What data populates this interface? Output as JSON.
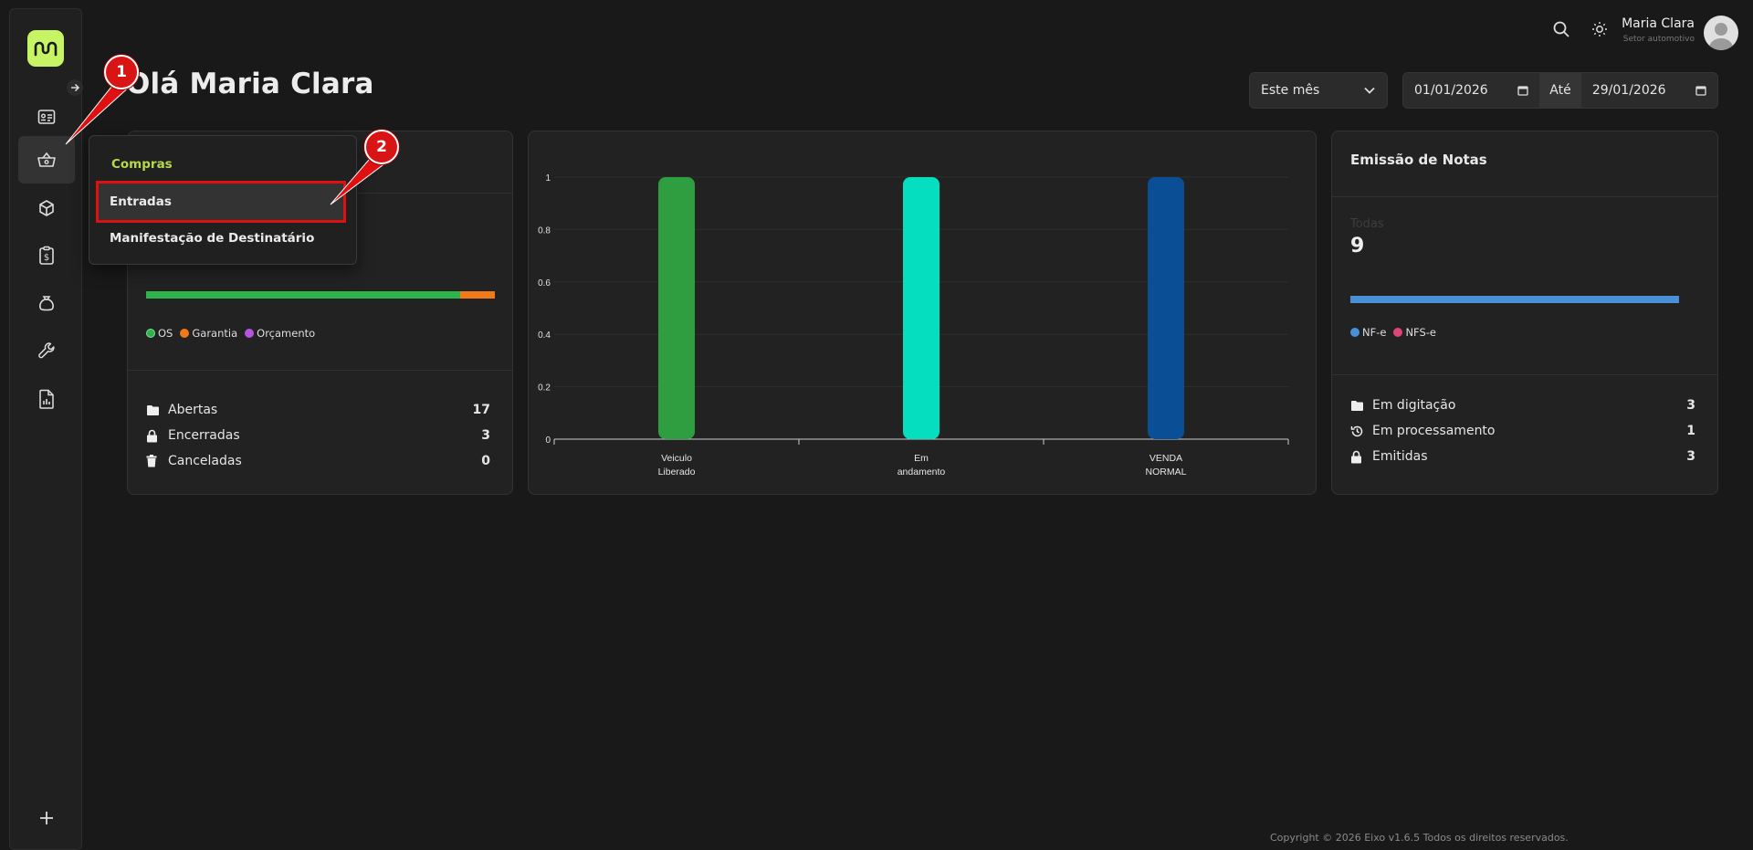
{
  "header": {
    "greeting": "Olá Maria Clara",
    "user_name": "Maria Clara",
    "user_role": "Setor automotivo"
  },
  "filters": {
    "period_label": "Este mês",
    "date_from": "01/01/2026",
    "until_label": "Até",
    "date_to": "29/01/2026"
  },
  "menu": {
    "section": "Compras",
    "items": [
      "Entradas",
      "Manifestação de Destinatário"
    ]
  },
  "os_card": {
    "legend": [
      {
        "label": "OS",
        "color": "#2fb24a"
      },
      {
        "label": "Garantia",
        "color": "#f07a1a"
      },
      {
        "label": "Orçamento",
        "color": "#b455e0"
      }
    ],
    "bar": [
      {
        "label": "OS",
        "fraction": 0.9,
        "color": "#2fb24a"
      },
      {
        "label": "Garantia",
        "fraction": 0.1,
        "color": "#f07a1a"
      }
    ],
    "stats": [
      {
        "label": "Abertas",
        "value": "17",
        "icon": "folder-icon"
      },
      {
        "label": "Encerradas",
        "value": "3",
        "icon": "lock-icon"
      },
      {
        "label": "Canceladas",
        "value": "0",
        "icon": "trash-icon"
      }
    ]
  },
  "chart_data": {
    "type": "bar",
    "categories": [
      [
        "Veiculo",
        "Liberado"
      ],
      [
        "Em",
        "andamento"
      ],
      [
        "VENDA",
        "NORMAL"
      ]
    ],
    "values": [
      1,
      1,
      1
    ],
    "colors": [
      "#2e9e40",
      "#05dfc0",
      "#0a4f96"
    ],
    "ylim": [
      0,
      1
    ],
    "yticks": [
      "0",
      "0.2",
      "0.4",
      "0.6",
      "0.8",
      "1"
    ],
    "title": "",
    "xlabel": "",
    "ylabel": ""
  },
  "notes_card": {
    "title": "Emissão de Notas",
    "total_label": "Todas",
    "total_value": "9",
    "bar_color": "#4a90d9",
    "legend": [
      {
        "label": "NF-e",
        "color": "#4a90d9"
      },
      {
        "label": "NFS-e",
        "color": "#e0457a"
      }
    ],
    "stats": [
      {
        "label": "Em digitação",
        "value": "3",
        "icon": "folder-icon"
      },
      {
        "label": "Em processamento",
        "value": "1",
        "icon": "history-icon"
      },
      {
        "label": "Emitidas",
        "value": "3",
        "icon": "lock-icon"
      }
    ]
  },
  "annotations": [
    "1",
    "2"
  ],
  "footer": {
    "copyright": "Copyright © 2026 Eixo v1.6.5 Todos os direitos reservados."
  }
}
